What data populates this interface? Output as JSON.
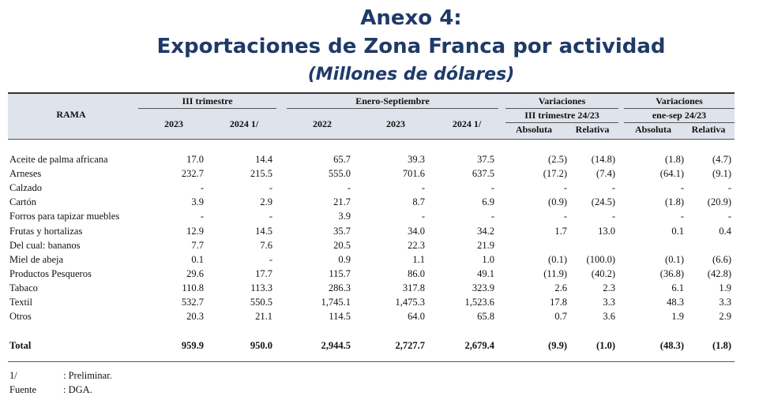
{
  "title": {
    "line1": "Anexo 4:",
    "line2": "Exportaciones de Zona Franca por actividad",
    "line3": "(Millones de dólares)"
  },
  "header": {
    "rama": "RAMA",
    "group1": "III trimestre",
    "group2": "Enero-Septiembre",
    "group3": "Variaciones",
    "group3_sub": "III trimestre 24/23",
    "group4": "Variaciones",
    "group4_sub": "ene-sep 24/23",
    "cols": [
      "2023",
      "2024 1/",
      "2022",
      "2023",
      "2024 1/",
      "Absoluta",
      "Relativa",
      "Absoluta",
      "Relativa"
    ]
  },
  "rows": [
    {
      "name": "Aceite de palma africana",
      "v": [
        "17.0",
        "14.4",
        "65.7",
        "39.3",
        "37.5",
        "(2.5)",
        "(14.8)",
        "(1.8)",
        "(4.7)"
      ]
    },
    {
      "name": "Arneses",
      "v": [
        "232.7",
        "215.5",
        "555.0",
        "701.6",
        "637.5",
        "(17.2)",
        "(7.4)",
        "(64.1)",
        "(9.1)"
      ]
    },
    {
      "name": "Calzado",
      "v": [
        "-",
        "-",
        "-",
        "-",
        "-",
        "-",
        "-",
        "-",
        "-"
      ]
    },
    {
      "name": "Cartón",
      "v": [
        "3.9",
        "2.9",
        "21.7",
        "8.7",
        "6.9",
        "(0.9)",
        "(24.5)",
        "(1.8)",
        "(20.9)"
      ]
    },
    {
      "name": "Forros para tapizar muebles",
      "v": [
        "-",
        "-",
        "3.9",
        "-",
        "-",
        "-",
        "-",
        "-",
        "-"
      ]
    },
    {
      "name": "Frutas y hortalizas",
      "v": [
        "12.9",
        "14.5",
        "35.7",
        "34.0",
        "34.2",
        "1.7",
        "13.0",
        "0.1",
        "0.4"
      ]
    },
    {
      "name": "Del cual: bananos",
      "v": [
        "7.7",
        "7.6",
        "20.5",
        "22.3",
        "21.9",
        "",
        "",
        "",
        ""
      ]
    },
    {
      "name": "Miel de abeja",
      "v": [
        "0.1",
        "-",
        "0.9",
        "1.1",
        "1.0",
        "(0.1)",
        "(100.0)",
        "(0.1)",
        "(6.6)"
      ]
    },
    {
      "name": "Productos Pesqueros",
      "v": [
        "29.6",
        "17.7",
        "115.7",
        "86.0",
        "49.1",
        "(11.9)",
        "(40.2)",
        "(36.8)",
        "(42.8)"
      ]
    },
    {
      "name": "Tabaco",
      "v": [
        "110.8",
        "113.3",
        "286.3",
        "317.8",
        "323.9",
        "2.6",
        "2.3",
        "6.1",
        "1.9"
      ]
    },
    {
      "name": "Textil",
      "v": [
        "532.7",
        "550.5",
        "1,745.1",
        "1,475.3",
        "1,523.6",
        "17.8",
        "3.3",
        "48.3",
        "3.3"
      ]
    },
    {
      "name": "Otros",
      "v": [
        "20.3",
        "21.1",
        "114.5",
        "64.0",
        "65.8",
        "0.7",
        "3.6",
        "1.9",
        "2.9"
      ]
    }
  ],
  "total": {
    "name": "Total",
    "v": [
      "959.9",
      "950.0",
      "2,944.5",
      "2,727.7",
      "2,679.4",
      "(9.9)",
      "(1.0)",
      "(48.3)",
      "(1.8)"
    ]
  },
  "notes": [
    {
      "key": "1/",
      "text": ": Preliminar."
    },
    {
      "key": "Fuente",
      "text": ": DGA."
    }
  ]
}
